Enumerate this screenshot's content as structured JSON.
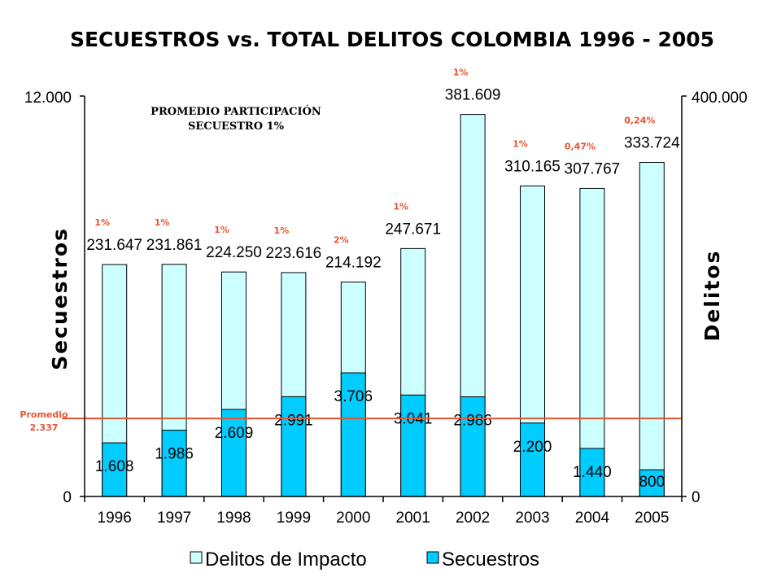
{
  "chart_data": {
    "type": "bar",
    "title": "SECUESTROS vs. TOTAL DELITOS COLOMBIA 1996 - 2005",
    "ylabel_left": "Secuestros",
    "ylabel_right": "Delitos",
    "ylim_left": [
      0,
      12000
    ],
    "ylim_right": [
      0,
      400000
    ],
    "left_ticks": [
      "12.000",
      "0"
    ],
    "right_ticks": [
      "400.000",
      "0"
    ],
    "categories": [
      "1996",
      "1997",
      "1998",
      "1999",
      "2000",
      "2001",
      "2002",
      "2003",
      "2004",
      "2005"
    ],
    "series": [
      {
        "name": "Delitos de Impacto",
        "axis": "right",
        "color": "#ccffff",
        "values": [
          231647,
          231861,
          224250,
          223616,
          214192,
          247671,
          381609,
          310165,
          307767,
          333724
        ],
        "labels": [
          "231.647",
          "231.861",
          "224.250",
          "223.616",
          "214.192",
          "247.671",
          "381.609",
          "310.165",
          "307.767",
          "333.724"
        ]
      },
      {
        "name": "Secuestros",
        "axis": "left",
        "color": "#00ccff",
        "values": [
          1608,
          1986,
          2609,
          2991,
          3706,
          3041,
          2986,
          2200,
          1440,
          800
        ],
        "labels": [
          "1.608",
          "1.986",
          "2.609",
          "2.991",
          "3.706",
          "3.041",
          "2.986",
          "2.200",
          "1.440",
          "800"
        ]
      }
    ],
    "participation": [
      "1%",
      "1%",
      "1%",
      "1%",
      "2%",
      "1%",
      "1%",
      "1%",
      "0,47%",
      "0,24%"
    ],
    "average": {
      "value": 2337,
      "label_line1": "Promedio",
      "label_line2": "2.337",
      "color": "#e8542e"
    },
    "annotation": {
      "line1": "PROMEDIO PARTICIPACIÓN",
      "line2": "SECUESTRO 1%"
    },
    "grid": false,
    "legend_position": "bottom"
  }
}
